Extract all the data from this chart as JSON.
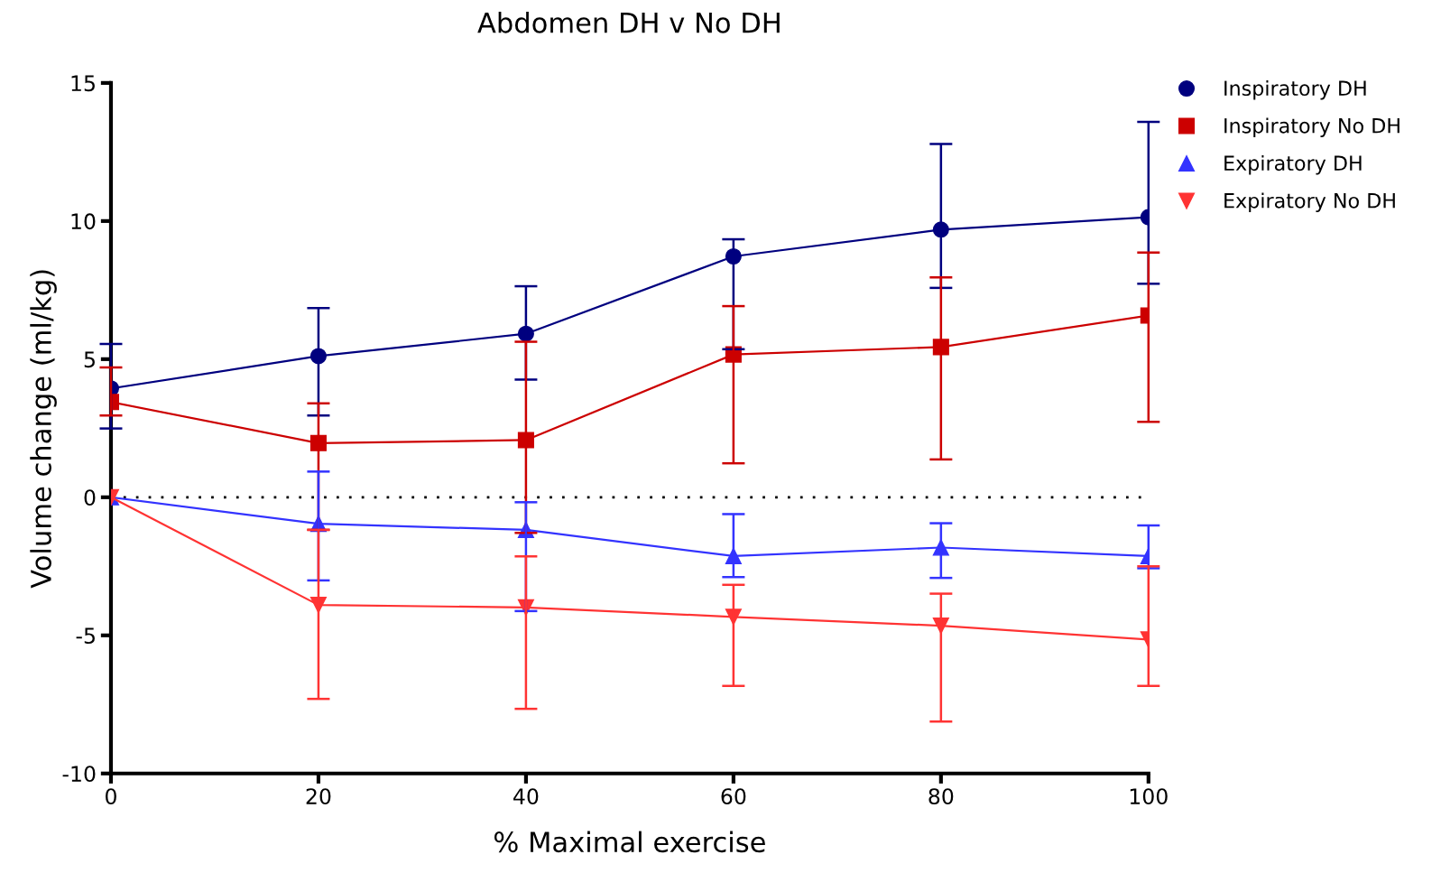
{
  "chart_data": {
    "type": "line",
    "title": "Abdomen DH v No DH",
    "xlabel": "% Maximal exercise",
    "ylabel": "Volume change (ml/kg)",
    "x": [
      0,
      20,
      40,
      60,
      80,
      100
    ],
    "series": [
      {
        "name": "Inspiratory DH",
        "color": "#00007f",
        "marker": "circle",
        "values": [
          3.94,
          5.11,
          5.92,
          8.72,
          9.69,
          10.14
        ],
        "errors": [
          [
            2.49,
            5.55
          ],
          [
            2.96,
            6.85
          ],
          [
            4.26,
            7.64
          ],
          [
            5.36,
            9.34
          ],
          [
            7.58,
            12.79
          ],
          [
            7.73,
            13.59
          ]
        ]
      },
      {
        "name": "Inspiratory No DH",
        "color": "#cc0000",
        "marker": "square",
        "values": [
          3.45,
          1.96,
          2.07,
          5.17,
          5.44,
          6.58
        ],
        "errors": [
          [
            2.96,
            4.7
          ],
          [
            -1.18,
            3.4
          ],
          [
            -1.29,
            5.63
          ],
          [
            1.23,
            6.92
          ],
          [
            1.37,
            7.96
          ],
          [
            2.73,
            8.86
          ]
        ]
      },
      {
        "name": "Expiratory DH",
        "color": "#3333ff",
        "marker": "triangle",
        "values": [
          0,
          -0.96,
          -1.18,
          -2.13,
          -1.82,
          -2.13
        ],
        "errors": [
          null,
          [
            -3.01,
            0.93
          ],
          [
            -4.12,
            -0.18
          ],
          [
            -2.89,
            -0.61
          ],
          [
            -2.92,
            -0.94
          ],
          [
            -2.57,
            -1.02
          ]
        ]
      },
      {
        "name": "Expiratory No DH",
        "color": "#ff3333",
        "marker": "triangle_down",
        "values": [
          0,
          -3.9,
          -3.99,
          -4.33,
          -4.65,
          -5.15
        ],
        "errors": [
          null,
          [
            -7.3,
            -1.18
          ],
          [
            -7.66,
            -2.14
          ],
          [
            -6.83,
            -3.17
          ],
          [
            -8.12,
            -3.49
          ],
          [
            -6.83,
            -2.5
          ]
        ]
      }
    ],
    "xlim": [
      0,
      100
    ],
    "xticks": [
      0,
      20,
      40,
      60,
      80,
      100
    ],
    "ylim": [
      -10,
      15
    ],
    "yticks": [
      -10,
      -5,
      0,
      5,
      10,
      15
    ],
    "ref_lines": [
      {
        "axis": "y",
        "value": 0,
        "color": "#000000",
        "line_style": "dotted"
      }
    ],
    "grid": false,
    "legend": "right"
  }
}
